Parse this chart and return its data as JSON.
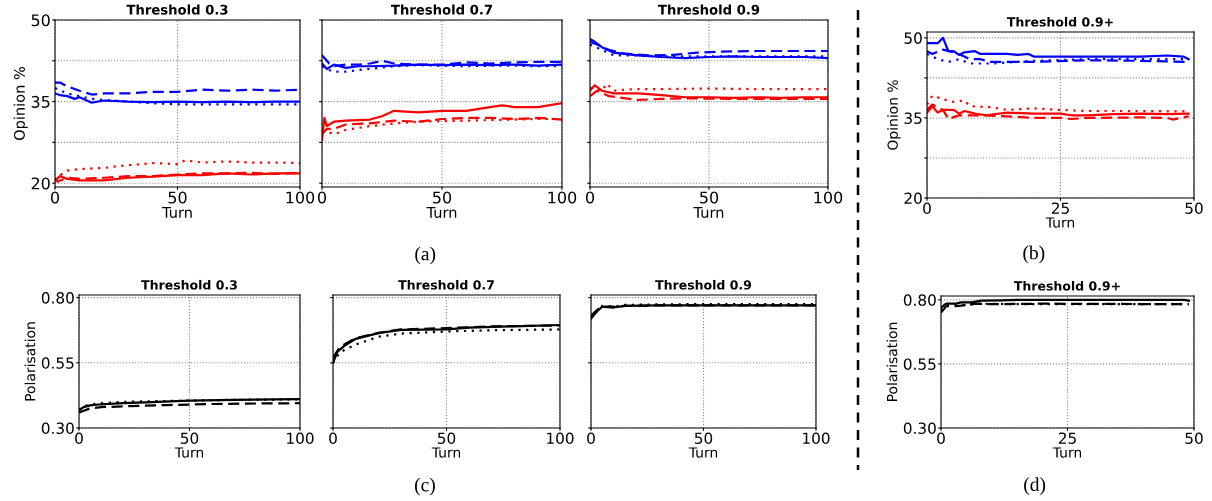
{
  "chart_data": [
    {
      "type": "line",
      "title": "Threshold 0.3",
      "xlabel": "Turn",
      "ylabel": "Opinion %",
      "xlim": [
        0,
        100
      ],
      "xticks": [
        0,
        50,
        100
      ],
      "ylim": [
        19.3,
        50
      ],
      "yticks": [
        20,
        {
          "value": 27.5,
          "label": null
        },
        35,
        {
          "value": 42.5,
          "label": null
        },
        50
      ],
      "grid": true,
      "series": [
        {
          "color": "#0000ff",
          "line_style": "solid",
          "x": [
            0,
            2,
            5,
            8,
            10,
            13,
            15,
            20,
            30,
            40,
            50,
            60,
            70,
            80,
            90,
            100
          ],
          "values": [
            36.5,
            36.2,
            36.0,
            35.5,
            35.8,
            35.2,
            34.8,
            35.2,
            35.0,
            34.9,
            35.0,
            34.9,
            35.0,
            34.9,
            35.0,
            35.0
          ]
        },
        {
          "color": "#0000ff",
          "line_style": "dashed",
          "x": [
            0,
            2,
            5,
            10,
            15,
            20,
            30,
            40,
            50,
            60,
            70,
            80,
            90,
            100
          ],
          "values": [
            38.5,
            38.5,
            37.8,
            37.0,
            36.3,
            36.5,
            36.5,
            36.8,
            36.8,
            37.2,
            37.0,
            37.2,
            37.0,
            37.2
          ]
        },
        {
          "color": "#0000ff",
          "line_style": "dotted",
          "x": [
            0,
            5,
            10,
            15,
            20,
            30,
            40,
            50,
            60,
            70,
            80,
            90,
            100
          ],
          "values": [
            37.5,
            36.5,
            36.0,
            35.5,
            35.3,
            35.0,
            34.7,
            34.5,
            34.5,
            34.5,
            34.5,
            34.5,
            34.5
          ]
        },
        {
          "color": "#ff0000",
          "line_style": "solid",
          "x": [
            0,
            2,
            5,
            10,
            15,
            20,
            30,
            40,
            50,
            60,
            70,
            80,
            90,
            100
          ],
          "values": [
            20.5,
            21.3,
            20.8,
            20.5,
            20.5,
            20.5,
            21.0,
            21.2,
            21.5,
            21.5,
            21.8,
            21.6,
            21.8,
            21.8
          ]
        },
        {
          "color": "#ff0000",
          "line_style": "dashed",
          "x": [
            0,
            1,
            5,
            10,
            20,
            30,
            40,
            50,
            60,
            70,
            80,
            90,
            100
          ],
          "values": [
            21.0,
            20.3,
            21.0,
            20.8,
            21.0,
            21.3,
            21.3,
            21.6,
            21.8,
            21.8,
            21.9,
            21.7,
            21.9
          ]
        },
        {
          "color": "#ff0000",
          "line_style": "dotted",
          "x": [
            0,
            3,
            5,
            10,
            20,
            25,
            30,
            40,
            50,
            53,
            60,
            70,
            80,
            90,
            100
          ],
          "values": [
            20.5,
            21.8,
            22.3,
            22.6,
            22.8,
            23.1,
            23.3,
            23.7,
            23.5,
            24.2,
            23.8,
            24.0,
            23.8,
            23.8,
            23.7
          ]
        }
      ]
    },
    {
      "type": "line",
      "title": "Threshold 0.7",
      "xlabel": "Turn",
      "xlim": [
        0,
        100
      ],
      "xticks": [
        0,
        50,
        100
      ],
      "ylim": [
        19.3,
        50
      ],
      "yticks": [
        20,
        27.5,
        35,
        42.5,
        50
      ],
      "tick_labels": "x",
      "grid": true,
      "annotations": [
        "(a)"
      ],
      "series": [
        {
          "color": "#0000ff",
          "line_style": "solid",
          "x": [
            0,
            2,
            5,
            10,
            15,
            20,
            30,
            40,
            50,
            60,
            70,
            80,
            90,
            100
          ],
          "values": [
            42.0,
            41.0,
            41.8,
            41.2,
            41.5,
            41.5,
            41.6,
            41.8,
            41.7,
            41.8,
            41.7,
            41.8,
            41.6,
            41.8
          ]
        },
        {
          "color": "#0000ff",
          "line_style": "dashed",
          "x": [
            0,
            1,
            3,
            5,
            10,
            15,
            20,
            25,
            30,
            40,
            50,
            60,
            70,
            80,
            90,
            100
          ],
          "values": [
            43.5,
            43.0,
            42.0,
            41.5,
            41.8,
            41.8,
            42.0,
            42.5,
            42.0,
            41.8,
            41.8,
            42.2,
            42.0,
            42.2,
            42.3,
            42.3
          ]
        },
        {
          "color": "#0000ff",
          "line_style": "dotted",
          "x": [
            0,
            3,
            5,
            10,
            15,
            20,
            30,
            40,
            50,
            60,
            70,
            80,
            90,
            100
          ],
          "values": [
            41.5,
            40.8,
            40.5,
            40.5,
            40.8,
            41.0,
            41.5,
            41.7,
            41.6,
            41.5,
            41.6,
            41.6,
            41.5,
            41.5
          ]
        },
        {
          "color": "#ff0000",
          "line_style": "solid",
          "x": [
            0,
            1,
            2,
            5,
            10,
            20,
            25,
            30,
            40,
            50,
            60,
            70,
            75,
            80,
            90,
            100
          ],
          "values": [
            28.0,
            32.0,
            30.5,
            31.3,
            31.5,
            31.7,
            32.3,
            33.3,
            33.0,
            33.3,
            33.3,
            34.0,
            34.3,
            34.0,
            34.0,
            34.7
          ]
        },
        {
          "color": "#ff0000",
          "line_style": "dashed",
          "x": [
            0,
            2,
            5,
            10,
            20,
            30,
            40,
            50,
            60,
            70,
            80,
            90,
            100
          ],
          "values": [
            29.0,
            30.0,
            30.0,
            30.8,
            31.0,
            31.5,
            31.3,
            31.8,
            32.0,
            32.0,
            31.8,
            32.0,
            31.7
          ]
        },
        {
          "color": "#ff0000",
          "line_style": "dotted",
          "x": [
            0,
            2,
            5,
            10,
            20,
            30,
            40,
            50,
            60,
            70,
            80,
            90,
            100
          ],
          "values": [
            29.5,
            29.5,
            29.0,
            29.8,
            30.5,
            31.0,
            31.3,
            31.4,
            31.5,
            31.6,
            31.7,
            31.8,
            31.8
          ]
        }
      ]
    },
    {
      "type": "line",
      "title": "Threshold 0.9",
      "xlabel": "Turn",
      "xlim": [
        0,
        100
      ],
      "xticks": [
        0,
        50,
        100
      ],
      "ylim": [
        19.3,
        50
      ],
      "yticks": [
        20,
        27.5,
        35,
        42.5,
        50
      ],
      "tick_labels": "x",
      "grid": true,
      "series": [
        {
          "color": "#0000ff",
          "line_style": "solid",
          "x": [
            0,
            2,
            5,
            10,
            20,
            30,
            40,
            50,
            60,
            70,
            80,
            90,
            100
          ],
          "values": [
            46.5,
            46.0,
            45.0,
            44.0,
            43.5,
            43.2,
            43.0,
            43.2,
            43.3,
            43.2,
            43.2,
            43.2,
            43.0
          ]
        },
        {
          "color": "#0000ff",
          "line_style": "dashed",
          "x": [
            0,
            3,
            8,
            15,
            25,
            35,
            45,
            55,
            70,
            85,
            100
          ],
          "values": [
            46.0,
            45.5,
            44.5,
            43.8,
            43.5,
            43.6,
            44.0,
            44.2,
            44.3,
            44.3,
            44.3
          ]
        },
        {
          "color": "#0000ff",
          "line_style": "dotted",
          "x": [
            0,
            5,
            10,
            20,
            30,
            50,
            70,
            100
          ],
          "values": [
            45.5,
            44.5,
            43.5,
            43.5,
            43.3,
            43.3,
            43.3,
            43.3
          ]
        },
        {
          "color": "#ff0000",
          "line_style": "solid",
          "x": [
            0,
            2,
            5,
            10,
            20,
            30,
            40,
            50,
            60,
            70,
            80,
            90,
            100
          ],
          "values": [
            37.0,
            38.0,
            37.0,
            36.5,
            36.5,
            36.2,
            35.8,
            35.8,
            35.7,
            35.8,
            35.7,
            35.8,
            35.8
          ]
        },
        {
          "color": "#ff0000",
          "line_style": "dashed",
          "x": [
            0,
            3,
            8,
            15,
            20,
            30,
            40,
            60,
            80,
            100
          ],
          "values": [
            36.0,
            37.0,
            36.0,
            35.6,
            35.3,
            35.5,
            35.6,
            35.5,
            35.5,
            35.5
          ]
        },
        {
          "color": "#ff0000",
          "line_style": "dotted",
          "x": [
            0,
            5,
            7,
            10,
            15,
            20,
            30,
            50,
            70,
            100
          ],
          "values": [
            37.5,
            37.0,
            38.3,
            37.0,
            37.2,
            37.3,
            37.3,
            37.4,
            37.3,
            37.3
          ]
        }
      ]
    },
    {
      "type": "line",
      "title": "Threshold 0.9+",
      "xlabel": "Turn",
      "ylabel": "Opinion %",
      "xlim": [
        0,
        50
      ],
      "xticks": [
        0,
        25,
        50
      ],
      "ylim": [
        20,
        51.1
      ],
      "yticks": [
        20,
        {
          "value": 27.5,
          "label": null
        },
        35,
        {
          "value": 42.5,
          "label": null
        },
        50
      ],
      "grid": true,
      "annotations": [
        "(b)"
      ],
      "series": [
        {
          "color": "#0000ff",
          "line_style": "solid",
          "x": [
            0,
            2,
            3,
            4,
            5,
            6,
            7,
            9,
            10,
            15,
            17,
            19,
            20,
            25,
            30,
            40,
            45,
            48,
            49
          ],
          "values": [
            49.0,
            49.0,
            50.0,
            47.5,
            47.5,
            46.8,
            47.3,
            47.5,
            47.0,
            47.0,
            46.8,
            47.0,
            46.5,
            46.5,
            46.5,
            46.5,
            46.7,
            46.5,
            46.0
          ]
        },
        {
          "color": "#0000ff",
          "line_style": "dashed",
          "x": [
            0,
            1,
            3,
            5,
            7,
            8,
            10,
            12,
            20,
            30,
            40,
            49
          ],
          "values": [
            47.5,
            47.0,
            47.8,
            47.3,
            46.5,
            46.0,
            46.0,
            45.5,
            45.5,
            45.8,
            45.7,
            45.5
          ]
        },
        {
          "color": "#0000ff",
          "line_style": "dotted",
          "x": [
            0,
            2,
            4,
            6,
            8,
            12,
            20,
            30,
            40,
            49
          ],
          "values": [
            47.0,
            46.0,
            45.5,
            46.0,
            45.2,
            45.2,
            45.7,
            46.0,
            46.0,
            46.0
          ]
        },
        {
          "color": "#ff0000",
          "line_style": "solid",
          "x": [
            0,
            1,
            2,
            3,
            5,
            6,
            7,
            9,
            11,
            15,
            20,
            25,
            27,
            30,
            35,
            40,
            45,
            49
          ],
          "values": [
            36.0,
            37.2,
            36.0,
            36.5,
            36.5,
            35.8,
            36.3,
            35.8,
            35.5,
            36.0,
            35.8,
            35.8,
            35.5,
            35.5,
            35.7,
            35.8,
            35.7,
            35.8
          ]
        },
        {
          "color": "#ff0000",
          "line_style": "dashed",
          "x": [
            0,
            1,
            3,
            4,
            6,
            10,
            15,
            20,
            25,
            27,
            30,
            40,
            45,
            46,
            49
          ],
          "values": [
            36.5,
            37.5,
            36.5,
            34.8,
            35.5,
            35.5,
            35.3,
            35.0,
            35.0,
            34.8,
            35.0,
            35.1,
            35.0,
            34.7,
            35.3
          ]
        },
        {
          "color": "#ff0000",
          "line_style": "dotted",
          "x": [
            0,
            1,
            3,
            5,
            7,
            8,
            12,
            15,
            20,
            25,
            30,
            40,
            49
          ],
          "values": [
            37.5,
            39.2,
            38.5,
            38.0,
            38.3,
            37.2,
            37.0,
            36.5,
            36.8,
            36.5,
            36.3,
            36.3,
            36.2
          ]
        }
      ]
    },
    {
      "type": "line",
      "title": "Threshold 0.3",
      "xlabel": "Turn",
      "ylabel": "Polarisation",
      "xlim": [
        0,
        100
      ],
      "xticks": [
        0,
        50,
        100
      ],
      "ylim": [
        0.3,
        0.81
      ],
      "yticks": [
        {
          "value": 0.3,
          "label": "0.30"
        },
        0.55,
        {
          "value": 0.8,
          "label": "0.80"
        }
      ],
      "grid": true,
      "series": [
        {
          "color": "#000000",
          "line_style": "solid",
          "x": [
            0,
            2,
            5,
            10,
            20,
            30,
            50,
            70,
            100
          ],
          "values": [
            0.368,
            0.38,
            0.387,
            0.391,
            0.395,
            0.398,
            0.405,
            0.408,
            0.411
          ]
        },
        {
          "color": "#000000",
          "line_style": "dashed",
          "x": [
            0,
            5,
            10,
            20,
            40,
            60,
            80,
            100
          ],
          "values": [
            0.36,
            0.375,
            0.38,
            0.383,
            0.388,
            0.392,
            0.394,
            0.395
          ]
        },
        {
          "color": "#000000",
          "line_style": "dotted",
          "x": [
            0,
            2,
            5,
            10,
            20,
            30,
            50,
            70,
            100
          ],
          "values": [
            0.37,
            0.382,
            0.39,
            0.395,
            0.4,
            0.402,
            0.405,
            0.408,
            0.41
          ]
        }
      ]
    },
    {
      "type": "line",
      "title": "Threshold 0.7",
      "xlabel": "Turn",
      "xlim": [
        0,
        100
      ],
      "xticks": [
        0,
        50,
        100
      ],
      "ylim": [
        0.3,
        0.81
      ],
      "yticks": [
        0.3,
        0.55,
        0.8
      ],
      "tick_labels": "x",
      "grid": true,
      "annotations": [
        "(c)"
      ],
      "series": [
        {
          "color": "#000000",
          "line_style": "solid",
          "x": [
            0,
            2,
            5,
            10,
            20,
            30,
            50,
            60,
            80,
            100
          ],
          "values": [
            0.55,
            0.593,
            0.615,
            0.642,
            0.664,
            0.676,
            0.678,
            0.685,
            0.69,
            0.695
          ]
        },
        {
          "color": "#000000",
          "line_style": "dashed",
          "x": [
            0,
            3,
            10,
            20,
            30,
            50,
            70,
            100
          ],
          "values": [
            0.57,
            0.61,
            0.645,
            0.665,
            0.678,
            0.683,
            0.69,
            0.693
          ]
        },
        {
          "color": "#000000",
          "line_style": "dotted",
          "x": [
            0,
            3,
            10,
            20,
            30,
            50,
            70,
            100
          ],
          "values": [
            0.55,
            0.59,
            0.62,
            0.65,
            0.662,
            0.67,
            0.675,
            0.678
          ]
        }
      ]
    },
    {
      "type": "line",
      "title": "Threshold 0.9",
      "xlabel": "Turn",
      "xlim": [
        0,
        100
      ],
      "xticks": [
        0,
        50,
        100
      ],
      "ylim": [
        0.3,
        0.81
      ],
      "yticks": [
        0.3,
        0.55,
        0.8
      ],
      "tick_labels": "x",
      "grid": true,
      "series": [
        {
          "color": "#000000",
          "line_style": "solid",
          "x": [
            0,
            3,
            5,
            10,
            15,
            30,
            50,
            100
          ],
          "values": [
            0.72,
            0.75,
            0.765,
            0.762,
            0.768,
            0.77,
            0.77,
            0.77
          ]
        },
        {
          "color": "#000000",
          "line_style": "dashed",
          "x": [
            0,
            3,
            5,
            10,
            15,
            30,
            50,
            100
          ],
          "values": [
            0.73,
            0.755,
            0.766,
            0.765,
            0.768,
            0.77,
            0.77,
            0.77
          ]
        },
        {
          "color": "#000000",
          "line_style": "dotted",
          "x": [
            0,
            3,
            5,
            10,
            15,
            30,
            50,
            100
          ],
          "values": [
            0.72,
            0.752,
            0.768,
            0.766,
            0.772,
            0.774,
            0.775,
            0.775
          ]
        }
      ]
    },
    {
      "type": "line",
      "title": "Threshold 0.9+",
      "xlabel": "Turn",
      "ylabel": "Polarisation",
      "xlim": [
        0,
        50
      ],
      "xticks": [
        0,
        25,
        50
      ],
      "ylim": [
        0.3,
        0.815
      ],
      "yticks": [
        {
          "value": 0.3,
          "label": "0.30"
        },
        0.55,
        {
          "value": 0.8,
          "label": "0.80"
        }
      ],
      "grid": true,
      "annotations": [
        "(d)"
      ],
      "series": [
        {
          "color": "#000000",
          "line_style": "solid",
          "x": [
            0,
            1,
            3,
            4,
            6,
            8,
            12,
            15,
            30,
            48,
            49
          ],
          "values": [
            0.77,
            0.785,
            0.785,
            0.79,
            0.79,
            0.797,
            0.798,
            0.8,
            0.8,
            0.8,
            0.797
          ]
        },
        {
          "color": "#000000",
          "line_style": "dashed",
          "x": [
            0,
            1,
            3,
            5,
            7,
            10,
            20,
            49
          ],
          "values": [
            0.75,
            0.775,
            0.775,
            0.78,
            0.785,
            0.783,
            0.785,
            0.783
          ]
        },
        {
          "color": "#000000",
          "line_style": "dotted",
          "x": [
            0,
            1,
            4,
            8,
            15,
            49
          ],
          "values": [
            0.76,
            0.78,
            0.78,
            0.785,
            0.783,
            0.783
          ]
        }
      ]
    }
  ]
}
